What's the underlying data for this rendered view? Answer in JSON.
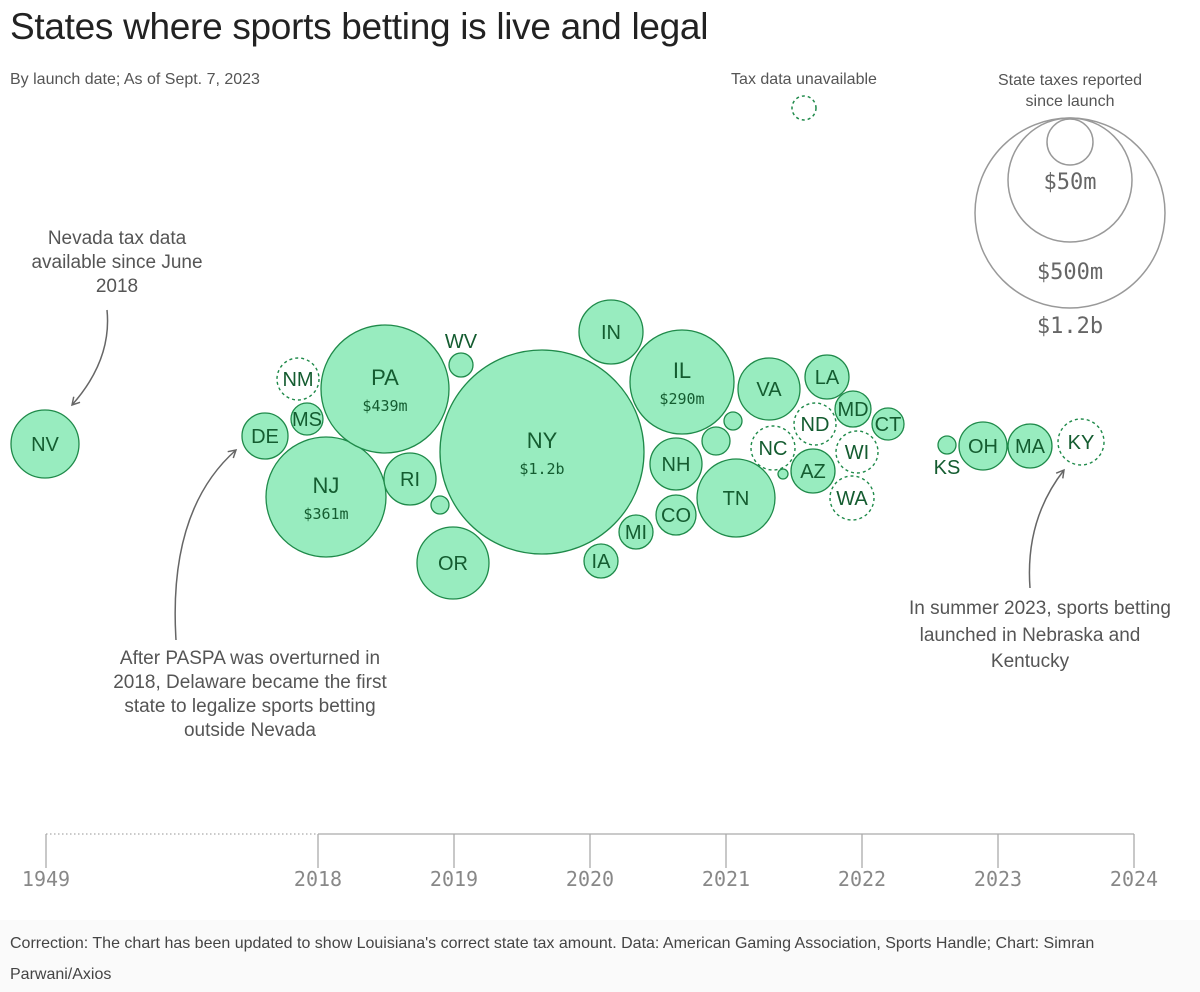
{
  "title": "States where sports betting is live and legal",
  "subtitle": "By launch date; As of Sept. 7, 2023",
  "footer": "Correction: The chart has been updated to show Louisiana's correct state tax amount. Data: American Gaming Association, Sports Handle; Chart: Simran Parwani/Axios",
  "legend": {
    "unavailable_label": "Tax data unavailable",
    "size_title_line1": "State taxes reported",
    "size_title_line2": "since launch",
    "size_labels": [
      "$50m",
      "$500m",
      "$1.2b"
    ],
    "size_values": [
      50,
      500,
      1200
    ]
  },
  "annotations": {
    "nevada": [
      "Nevada tax data",
      "available since June",
      "2018"
    ],
    "delaware": [
      "After PASPA was overturned in",
      "2018, Delaware became the first",
      "state to legalize sports betting",
      "outside Nevada"
    ],
    "summer": [
      "In summer 2023, sports betting",
      "launched in Nebraska and",
      "Kentucky"
    ]
  },
  "colors": {
    "fill": "#98ecbf",
    "stroke": "#1f8a4a",
    "label": "#145c30",
    "axis": "#aaaaaa",
    "tick_label": "#888888"
  },
  "chart_data": {
    "type": "scatter",
    "xlabel": "",
    "ylabel": "",
    "x_ticks": [
      "1949",
      "2018",
      "2019",
      "2020",
      "2021",
      "2022",
      "2023",
      "2024"
    ],
    "size_meaning": "State taxes reported since launch",
    "points": [
      {
        "state": "NV",
        "value_label": "",
        "tax_data": true
      },
      {
        "state": "DE",
        "value_label": "",
        "tax_data": true
      },
      {
        "state": "NM",
        "value_label": "",
        "tax_data": false
      },
      {
        "state": "MS",
        "value_label": "",
        "tax_data": true
      },
      {
        "state": "NJ",
        "value_label": "$361m",
        "tax_data": true,
        "tax_millions": 361
      },
      {
        "state": "PA",
        "value_label": "$439m",
        "tax_data": true,
        "tax_millions": 439
      },
      {
        "state": "WV",
        "value_label": "",
        "tax_data": true
      },
      {
        "state": "RI",
        "value_label": "",
        "tax_data": true
      },
      {
        "state": "",
        "value_label": "",
        "tax_data": true
      },
      {
        "state": "OR",
        "value_label": "",
        "tax_data": true
      },
      {
        "state": "NY",
        "value_label": "$1.2b",
        "tax_data": true,
        "tax_millions": 1200
      },
      {
        "state": "IN",
        "value_label": "",
        "tax_data": true
      },
      {
        "state": "IA",
        "value_label": "",
        "tax_data": true
      },
      {
        "state": "MI",
        "value_label": "",
        "tax_data": true
      },
      {
        "state": "CO",
        "value_label": "",
        "tax_data": true
      },
      {
        "state": "IL",
        "value_label": "$290m",
        "tax_data": true,
        "tax_millions": 290
      },
      {
        "state": "NH",
        "value_label": "",
        "tax_data": true
      },
      {
        "state": "",
        "value_label": "",
        "tax_data": true
      },
      {
        "state": "",
        "value_label": "",
        "tax_data": true
      },
      {
        "state": "TN",
        "value_label": "",
        "tax_data": true
      },
      {
        "state": "VA",
        "value_label": "",
        "tax_data": true
      },
      {
        "state": "NC",
        "value_label": "",
        "tax_data": false
      },
      {
        "state": "",
        "value_label": "",
        "tax_data": true
      },
      {
        "state": "LA",
        "value_label": "",
        "tax_data": true
      },
      {
        "state": "ND",
        "value_label": "",
        "tax_data": false
      },
      {
        "state": "AZ",
        "value_label": "",
        "tax_data": true
      },
      {
        "state": "MD",
        "value_label": "",
        "tax_data": true
      },
      {
        "state": "WI",
        "value_label": "",
        "tax_data": false
      },
      {
        "state": "WA",
        "value_label": "",
        "tax_data": false
      },
      {
        "state": "CT",
        "value_label": "",
        "tax_data": true
      },
      {
        "state": "KS",
        "value_label": "",
        "tax_data": true
      },
      {
        "state": "OH",
        "value_label": "",
        "tax_data": true
      },
      {
        "state": "MA",
        "value_label": "",
        "tax_data": true
      },
      {
        "state": "KY",
        "value_label": "",
        "tax_data": false
      }
    ]
  }
}
